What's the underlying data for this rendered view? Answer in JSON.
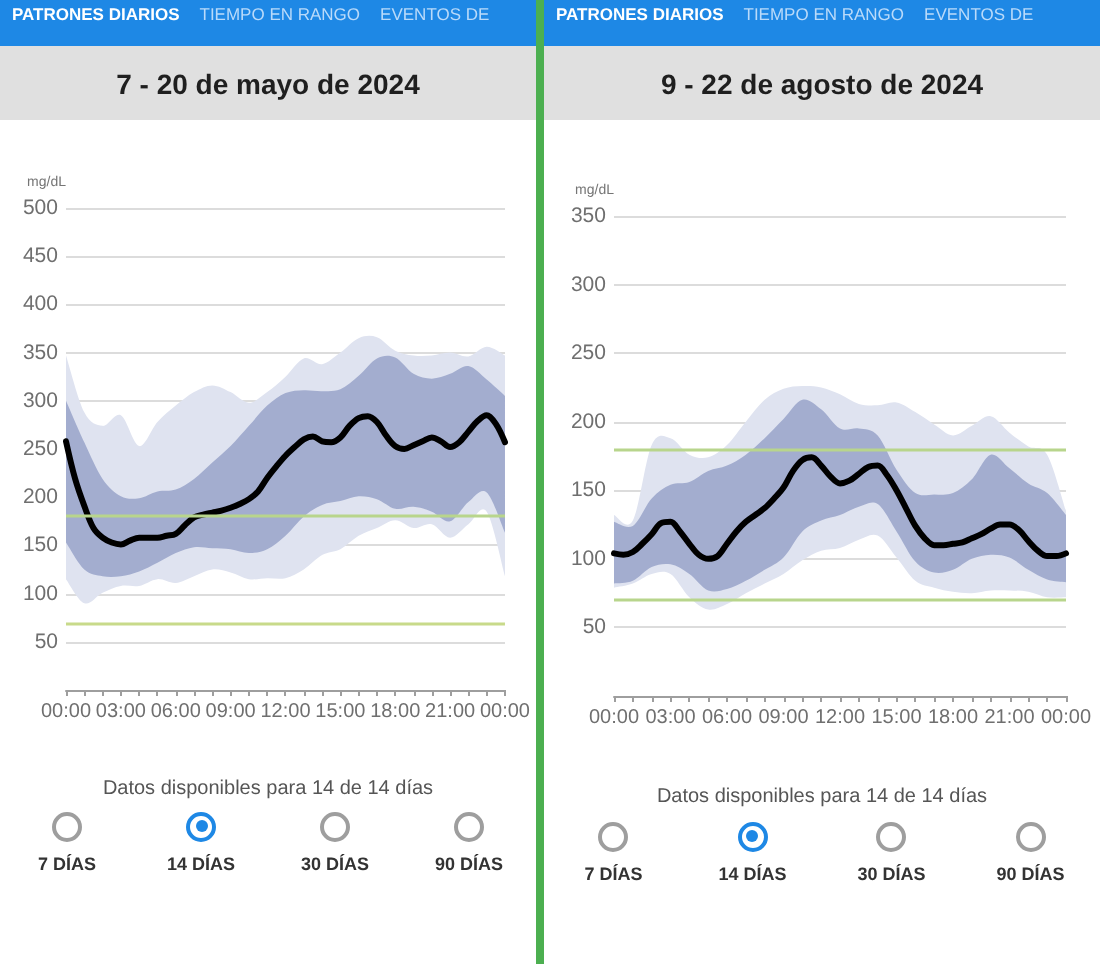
{
  "chart_data": [
    {
      "type": "line",
      "title": "7 - 20 de mayo de 2024",
      "ylabel": "mg/dL",
      "marker": "none",
      "grid": "y",
      "annotations": [
        "PATRONES DIARIOS",
        "TIEMPO EN RANGO",
        "EVENTOS DE",
        "Datos disponibles para 14 de 14 días",
        "7 DÍAS",
        "14 DÍAS",
        "30 DÍAS",
        "90 DÍAS"
      ],
      "x": [
        0,
        1,
        2,
        3,
        4,
        5,
        6,
        7,
        8,
        9,
        10,
        11,
        12,
        13,
        14,
        15,
        16,
        17,
        18,
        19,
        20,
        21,
        22,
        23,
        24
      ],
      "xlim": [
        0,
        24
      ],
      "xticks": [
        {
          "value": 0,
          "label": "00:00"
        },
        {
          "value": 1,
          "label": null
        },
        {
          "value": 2,
          "label": null
        },
        {
          "value": 3,
          "label": "03:00"
        },
        {
          "value": 4,
          "label": null
        },
        {
          "value": 5,
          "label": null
        },
        {
          "value": 6,
          "label": "06:00"
        },
        {
          "value": 7,
          "label": null
        },
        {
          "value": 8,
          "label": null
        },
        {
          "value": 9,
          "label": "09:00"
        },
        {
          "value": 10,
          "label": null
        },
        {
          "value": 11,
          "label": null
        },
        {
          "value": 12,
          "label": "12:00"
        },
        {
          "value": 13,
          "label": null
        },
        {
          "value": 14,
          "label": null
        },
        {
          "value": 15,
          "label": "15:00"
        },
        {
          "value": 16,
          "label": null
        },
        {
          "value": 17,
          "label": null
        },
        {
          "value": 18,
          "label": "18:00"
        },
        {
          "value": 19,
          "label": null
        },
        {
          "value": 20,
          "label": null
        },
        {
          "value": 21,
          "label": "21:00"
        },
        {
          "value": 22,
          "label": null
        },
        {
          "value": 23,
          "label": null
        },
        {
          "value": 24,
          "label": "00:00"
        }
      ],
      "ylim": [
        0,
        500
      ],
      "yticks": [
        50,
        100,
        150,
        200,
        250,
        300,
        350,
        400,
        450,
        500
      ],
      "ref_lines": [
        {
          "axis": "y",
          "value": 180,
          "color": "#b8d58c"
        },
        {
          "axis": "y",
          "value": 70,
          "color": "#c8da8a"
        }
      ],
      "series": [
        {
          "type": "line",
          "color": "#dfe3f0",
          "values": [
            null,
            null,
            null,
            null,
            null,
            null,
            null,
            null,
            null,
            null,
            null,
            null,
            null,
            null,
            null,
            null,
            null,
            null,
            null,
            null,
            null,
            null,
            null,
            null,
            null
          ],
          "lower": [
            115,
            90,
            101,
            108,
            108,
            115,
            111,
            118,
            125,
            122,
            115,
            116,
            116,
            125,
            140,
            146,
            160,
            168,
            176,
            168,
            172,
            158,
            172,
            185,
            118
          ],
          "upper": [
            347,
            288,
            274,
            285,
            253,
            278,
            295,
            309,
            316,
            309,
            298,
            309,
            325,
            344,
            338,
            350,
            365,
            366,
            352,
            347,
            347,
            350,
            346,
            356,
            347
          ]
        },
        {
          "type": "line",
          "color": "#a3adcf",
          "values": [
            null,
            null,
            null,
            null,
            null,
            null,
            null,
            null,
            null,
            null,
            null,
            null,
            null,
            null,
            null,
            null,
            null,
            null,
            null,
            null,
            null,
            null,
            null,
            null,
            null
          ],
          "lower": [
            153,
            125,
            118,
            118,
            123,
            132,
            142,
            148,
            147,
            146,
            142,
            146,
            160,
            180,
            192,
            196,
            201,
            198,
            188,
            190,
            185,
            175,
            195,
            205,
            163
          ],
          "upper": [
            300,
            257,
            219,
            201,
            199,
            206,
            208,
            219,
            236,
            253,
            274,
            295,
            308,
            311,
            310,
            312,
            326,
            344,
            345,
            328,
            323,
            328,
            336,
            322,
            305
          ]
        },
        {
          "type": "line",
          "color": "#000000",
          "x": [
            0,
            0.5,
            1,
            1.5,
            2,
            2.5,
            3,
            3.5,
            4,
            4.5,
            5,
            5.5,
            6,
            6.5,
            7,
            7.5,
            8,
            8.5,
            9,
            9.5,
            10,
            10.5,
            11,
            11.5,
            12,
            12.5,
            13,
            13.5,
            14,
            14.5,
            15,
            15.5,
            16,
            16.5,
            17,
            17.5,
            18,
            18.5,
            19,
            19.5,
            20,
            20.5,
            21,
            21.5,
            22,
            22.5,
            23,
            23.5,
            24
          ],
          "values": [
            258,
            219,
            191,
            168,
            158,
            153,
            151,
            155,
            158,
            158,
            158,
            160,
            162,
            171,
            179,
            182,
            184,
            186,
            189,
            193,
            198,
            206,
            220,
            232,
            243,
            252,
            260,
            263,
            258,
            257,
            262,
            274,
            282,
            284,
            278,
            264,
            253,
            250,
            254,
            258,
            262,
            258,
            252,
            257,
            268,
            279,
            285,
            276,
            257
          ]
        }
      ]
    },
    {
      "type": "line",
      "title": "9 - 22 de agosto de 2024",
      "ylabel": "mg/dL",
      "marker": "none",
      "grid": "y",
      "annotations": [
        "PATRONES DIARIOS",
        "TIEMPO EN RANGO",
        "EVENTOS DE",
        "Datos disponibles para 14 de 14 días",
        "7 DÍAS",
        "14 DÍAS",
        "30 DÍAS",
        "90 DÍAS"
      ],
      "x": [
        0,
        1,
        2,
        3,
        4,
        5,
        6,
        7,
        8,
        9,
        10,
        11,
        12,
        13,
        14,
        15,
        16,
        17,
        18,
        19,
        20,
        21,
        22,
        23,
        24
      ],
      "xlim": [
        0,
        24
      ],
      "xticks": [
        {
          "value": 0,
          "label": "00:00"
        },
        {
          "value": 1,
          "label": null
        },
        {
          "value": 2,
          "label": null
        },
        {
          "value": 3,
          "label": "03:00"
        },
        {
          "value": 4,
          "label": null
        },
        {
          "value": 5,
          "label": null
        },
        {
          "value": 6,
          "label": "06:00"
        },
        {
          "value": 7,
          "label": null
        },
        {
          "value": 8,
          "label": null
        },
        {
          "value": 9,
          "label": "09:00"
        },
        {
          "value": 10,
          "label": null
        },
        {
          "value": 11,
          "label": null
        },
        {
          "value": 12,
          "label": "12:00"
        },
        {
          "value": 13,
          "label": null
        },
        {
          "value": 14,
          "label": null
        },
        {
          "value": 15,
          "label": "15:00"
        },
        {
          "value": 16,
          "label": null
        },
        {
          "value": 17,
          "label": null
        },
        {
          "value": 18,
          "label": "18:00"
        },
        {
          "value": 19,
          "label": null
        },
        {
          "value": 20,
          "label": null
        },
        {
          "value": 21,
          "label": "21:00"
        },
        {
          "value": 22,
          "label": null
        },
        {
          "value": 23,
          "label": null
        },
        {
          "value": 24,
          "label": "00:00"
        }
      ],
      "ylim": [
        0,
        350
      ],
      "yticks": [
        50,
        100,
        150,
        200,
        250,
        300,
        350
      ],
      "ref_lines": [
        {
          "axis": "y",
          "value": 180,
          "color": "#b8d58c"
        },
        {
          "axis": "y",
          "value": 70,
          "color": "#b8d58c"
        }
      ],
      "series": [
        {
          "type": "line",
          "color": "#dfe3f0",
          "values": [
            null,
            null,
            null,
            null,
            null,
            null,
            null,
            null,
            null,
            null,
            null,
            null,
            null,
            null,
            null,
            null,
            null,
            null,
            null,
            null,
            null,
            null,
            null,
            null,
            null
          ],
          "lower": [
            79,
            82,
            89,
            89,
            72,
            63,
            67,
            75,
            82,
            89,
            99,
            106,
            108,
            114,
            117,
            101,
            84,
            79,
            76,
            75,
            77,
            77,
            76,
            72,
            72
          ],
          "upper": [
            132,
            128,
            183,
            188,
            176,
            174,
            183,
            200,
            216,
            224,
            226,
            225,
            220,
            213,
            212,
            214,
            207,
            198,
            190,
            197,
            204,
            192,
            182,
            176,
            135
          ]
        },
        {
          "type": "line",
          "color": "#a3adcf",
          "values": [
            null,
            null,
            null,
            null,
            null,
            null,
            null,
            null,
            null,
            null,
            null,
            null,
            null,
            null,
            null,
            null,
            null,
            null,
            null,
            null,
            null,
            null,
            null,
            null,
            null
          ],
          "lower": [
            82,
            84,
            94,
            96,
            89,
            77,
            78,
            84,
            92,
            101,
            120,
            128,
            132,
            138,
            140,
            120,
            98,
            90,
            92,
            100,
            103,
            101,
            92,
            85,
            83
          ],
          "upper": [
            127,
            124,
            144,
            154,
            156,
            164,
            168,
            176,
            188,
            202,
            216,
            209,
            195,
            195,
            190,
            165,
            148,
            147,
            148,
            158,
            176,
            166,
            155,
            148,
            132
          ]
        },
        {
          "type": "line",
          "color": "#000000",
          "x": [
            0,
            0.5,
            1,
            1.5,
            2,
            2.5,
            3,
            3.5,
            4,
            4.5,
            5,
            5.5,
            6,
            6.5,
            7,
            7.5,
            8,
            8.5,
            9,
            9.5,
            10,
            10.5,
            11,
            11.5,
            12,
            12.5,
            13,
            13.5,
            14,
            14.5,
            15,
            15.5,
            16,
            16.5,
            17,
            17.5,
            18,
            18.5,
            19,
            19.5,
            20,
            20.5,
            21,
            21.5,
            22,
            22.5,
            23,
            23.5,
            24
          ],
          "values": [
            104,
            103,
            105,
            111,
            118,
            126,
            127,
            120,
            111,
            103,
            100,
            102,
            111,
            120,
            127,
            132,
            137,
            144,
            152,
            164,
            172,
            174,
            168,
            160,
            155,
            157,
            162,
            167,
            168,
            161,
            150,
            137,
            124,
            115,
            110,
            110,
            111,
            112,
            115,
            118,
            122,
            125,
            125,
            121,
            113,
            106,
            102,
            102,
            104
          ]
        }
      ]
    }
  ]
}
